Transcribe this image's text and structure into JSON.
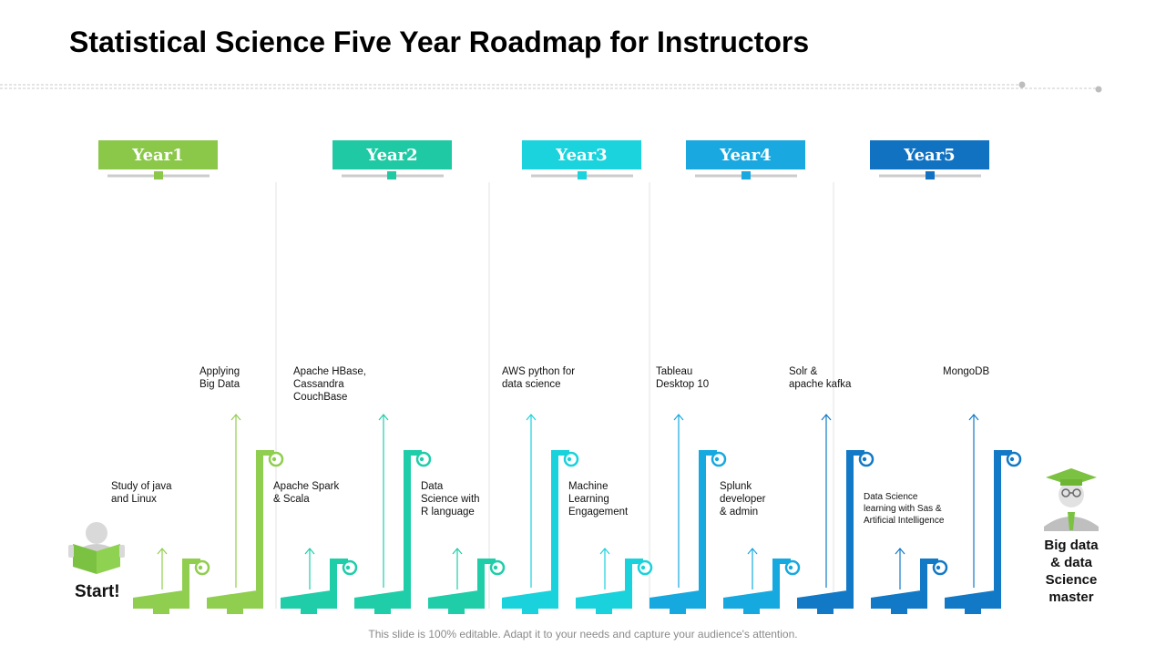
{
  "title": "Statistical Science Five Year Roadmap for Instructors",
  "footer": "This slide is 100% editable. Adapt it to your needs and capture your audience's attention.",
  "colors": {
    "year1": "#8bc84a",
    "year2": "#1ec9a3",
    "year3": "#1ad3dd",
    "year4": "#19a8e0",
    "year5": "#1272c2",
    "steps": [
      "#8fce4e",
      "#8fce4e",
      "#1fcda8",
      "#1fcda8",
      "#1fcda8",
      "#19d2db",
      "#19d2db",
      "#16a9e0",
      "#16a9e0",
      "#1279c6",
      "#1279c6",
      "#1279c6"
    ]
  },
  "years": [
    {
      "label": "Year1"
    },
    {
      "label": "Year2"
    },
    {
      "label": "Year3"
    },
    {
      "label": "Year4"
    },
    {
      "label": "Year5"
    }
  ],
  "steps": [
    {
      "line1": "Study of java",
      "line2": "and Linux",
      "line3": ""
    },
    {
      "line1": "Applying",
      "line2": "Big Data",
      "line3": ""
    },
    {
      "line1": "Apache Spark",
      "line2": "& Scala",
      "line3": ""
    },
    {
      "line1": "Apache HBase,",
      "line2": "Cassandra",
      "line3": "CouchBase"
    },
    {
      "line1": "Data",
      "line2": "Science with",
      "line3": "R language"
    },
    {
      "line1": "AWS python for",
      "line2": "data science",
      "line3": ""
    },
    {
      "line1": "Machine",
      "line2": "Learning",
      "line3": "Engagement"
    },
    {
      "line1": "Tableau",
      "line2": "Desktop 10",
      "line3": ""
    },
    {
      "line1": "Splunk",
      "line2": "developer",
      "line3": "& admin"
    },
    {
      "line1": "Solr &",
      "line2": "apache kafka",
      "line3": ""
    },
    {
      "line1": "Data Science",
      "line2": "learning with Sas &",
      "line3": "Artificial Intelligence"
    },
    {
      "line1": "MongoDB",
      "line2": "",
      "line3": ""
    }
  ],
  "start_label": "Start!",
  "master_label": {
    "line1": "Big data",
    "line2": "& data",
    "line3": "Science",
    "line4": "master"
  }
}
